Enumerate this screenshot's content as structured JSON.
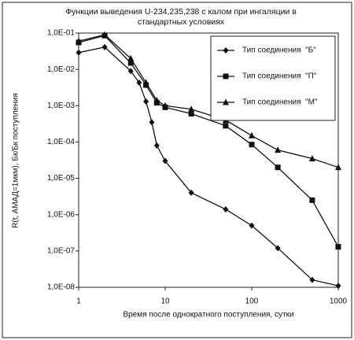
{
  "chart_data": {
    "type": "line",
    "title": "Функции выведения U-234,235,238 с калом при ингаляции в стандартных условиях",
    "xlabel": "Время после однократного поступления, сутки",
    "ylabel": "R(t, AMAД=1мкм), Бк/Бк поступления",
    "xscale": "log",
    "yscale": "log",
    "xlim": [
      1,
      1000
    ],
    "xticks": [
      1,
      10,
      100,
      1000
    ],
    "ylim": [
      1e-08,
      0.1
    ],
    "yticks": [
      {
        "value": 1e-08,
        "label": "1,0E-08"
      },
      {
        "value": 1e-07,
        "label": "1,0E-07"
      },
      {
        "value": 1e-06,
        "label": "1,0E-06"
      },
      {
        "value": 1e-05,
        "label": "1,0E-05"
      },
      {
        "value": 0.0001,
        "label": "1,0E-04"
      },
      {
        "value": 0.001,
        "label": "1,0E-03"
      },
      {
        "value": 0.01,
        "label": "1,0E-02"
      },
      {
        "value": 0.1,
        "label": "1,0E-01"
      }
    ],
    "grid": false,
    "legend": "top-right",
    "series": [
      {
        "name": "Тип соединения  \"Б\"",
        "color": "#111111",
        "marker": "diamond",
        "x": [
          1,
          2,
          4,
          5,
          6,
          7,
          8,
          10,
          20,
          50,
          100,
          200,
          500,
          1000
        ],
        "values": [
          0.029,
          0.041,
          0.009,
          0.0043,
          0.0013,
          0.00035,
          8e-05,
          3e-05,
          4e-06,
          1.4e-06,
          5e-07,
          1.2e-07,
          1.6e-08,
          1.1e-08
        ]
      },
      {
        "name": "Тип соединения  \"П\"",
        "color": "#111111",
        "marker": "square",
        "x": [
          1,
          2,
          4,
          6,
          8,
          10,
          20,
          50,
          100,
          200,
          500,
          1000
        ],
        "values": [
          0.055,
          0.085,
          0.015,
          0.0037,
          0.0012,
          0.0009,
          0.0006,
          0.00028,
          8.5e-05,
          2e-05,
          2.5e-06,
          1.3e-07
        ]
      },
      {
        "name": "Тип соединения  \"М\"",
        "color": "#111111",
        "marker": "triangle",
        "x": [
          1,
          2,
          4,
          6,
          8,
          10,
          20,
          50,
          100,
          200,
          500,
          1000
        ],
        "values": [
          0.06,
          0.09,
          0.02,
          0.0043,
          0.0014,
          0.001,
          0.0008,
          0.0004,
          0.00015,
          6e-05,
          3.5e-05,
          2e-05
        ]
      }
    ]
  }
}
